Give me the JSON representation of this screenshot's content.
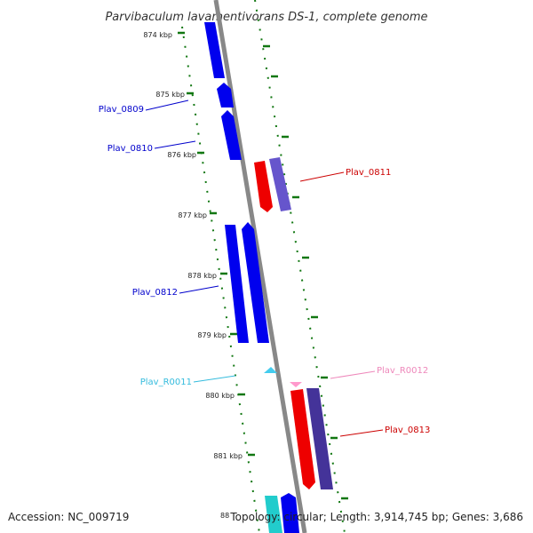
{
  "title": "Parvibaculum lavamentivorans DS-1, complete genome",
  "footer": {
    "accession": "Accession: NC_009719",
    "topology": "Topology: circular; Length: 3,914,745 bp; Genes: 3,686",
    "partial_tick": "88"
  },
  "ticks": [
    "874 kbp",
    "875 kbp",
    "876 kbp",
    "877 kbp",
    "878 kbp",
    "879 kbp",
    "880 kbp",
    "881 kbp"
  ],
  "genes": [
    {
      "name": "Plav_0809",
      "color": "#0000cc"
    },
    {
      "name": "Plav_0810",
      "color": "#0000cc"
    },
    {
      "name": "Plav_0811",
      "color": "#cc0000"
    },
    {
      "name": "Plav_0812",
      "color": "#0000cc"
    },
    {
      "name": "Plav_R0011",
      "color": "#33bbdd"
    },
    {
      "name": "Plav_R0012",
      "color": "#ee88bb"
    },
    {
      "name": "Plav_0813",
      "color": "#cc0000"
    }
  ],
  "colors": {
    "forward_gene": "#0000ee",
    "reverse_gene": "#ee0000",
    "reverse_gene_alt": "#6655cc",
    "reverse_gene_dark": "#443399",
    "forward_rna": "#44ccee",
    "reverse_rna": "#ff99cc",
    "cyan_gene": "#22cccc",
    "backbone": "#888888",
    "tick": "#117711"
  }
}
